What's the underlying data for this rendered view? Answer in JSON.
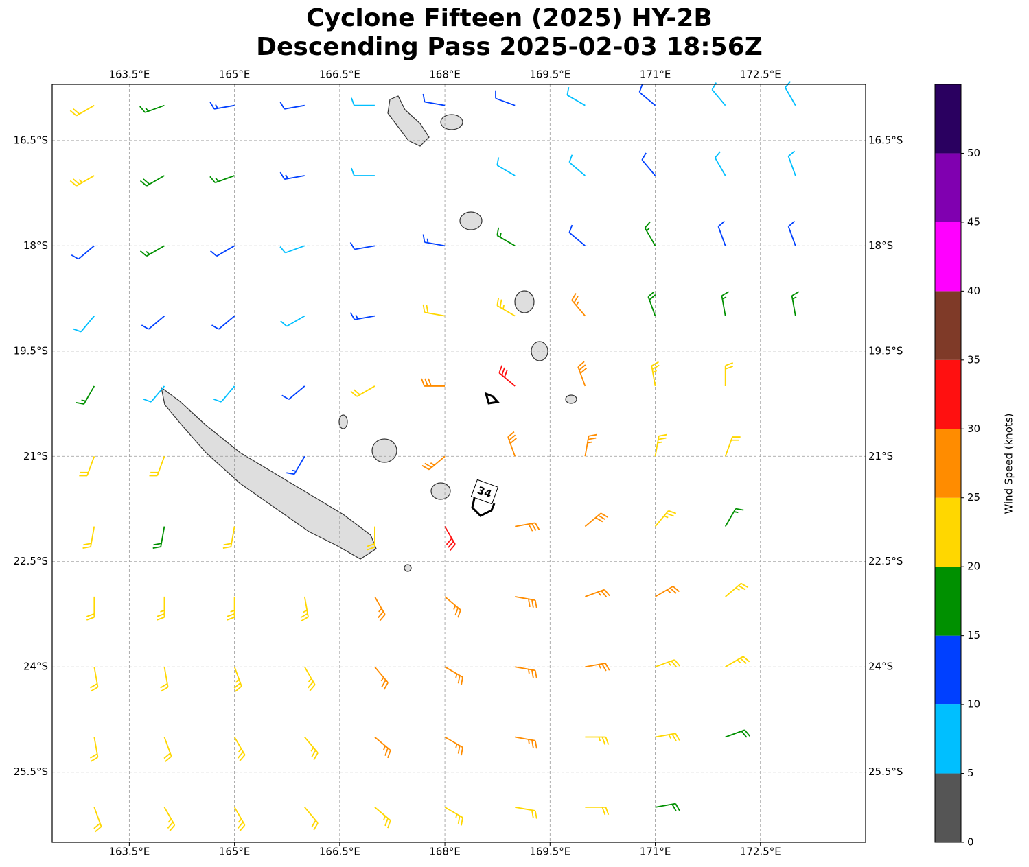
{
  "chart_data": {
    "type": "barbs",
    "title": "Cyclone Fifteen (2025) HY-2B",
    "subtitle": "Descending Pass 2025-02-03 18:56Z",
    "xlim": [
      162.4,
      174.0
    ],
    "ylim": [
      -26.5,
      -15.7
    ],
    "xticks": [
      {
        "value": 163.5,
        "label": "163.5°E"
      },
      {
        "value": 165,
        "label": "165°E"
      },
      {
        "value": 166.5,
        "label": "166.5°E"
      },
      {
        "value": 168,
        "label": "168°E"
      },
      {
        "value": 169.5,
        "label": "169.5°E"
      },
      {
        "value": 171,
        "label": "171°E"
      },
      {
        "value": 172.5,
        "label": "172.5°E"
      }
    ],
    "yticks": [
      {
        "value": -16.5,
        "label": "16.5°S"
      },
      {
        "value": -18,
        "label": "18°S"
      },
      {
        "value": -19.5,
        "label": "19.5°S"
      },
      {
        "value": -21,
        "label": "21°S"
      },
      {
        "value": -22.5,
        "label": "22.5°S"
      },
      {
        "value": -24,
        "label": "24°S"
      },
      {
        "value": -25.5,
        "label": "25.5°S"
      }
    ],
    "grid": true,
    "contour_level": 34,
    "wind": {
      "lons": [
        163,
        164,
        165,
        166,
        167,
        168,
        169,
        170,
        171,
        172,
        173
      ],
      "lats": [
        -16,
        -17,
        -18,
        -19,
        -20,
        -21,
        -22,
        -23,
        -24,
        -25,
        -26
      ],
      "speed": [
        [
          22,
          17,
          13,
          12,
          9,
          12,
          12,
          8,
          12,
          9,
          8
        ],
        [
          24,
          18,
          17,
          13,
          9,
          null,
          8,
          9,
          11,
          9,
          8
        ],
        [
          12,
          16,
          12,
          9,
          12,
          14,
          17,
          12,
          16,
          12,
          11
        ],
        [
          9,
          12,
          11,
          9,
          13,
          22,
          23,
          26,
          18,
          17,
          16
        ],
        [
          16,
          8,
          9,
          12,
          22,
          28,
          32,
          28,
          24,
          22,
          null
        ],
        [
          21,
          22,
          null,
          13,
          null,
          27,
          28,
          26,
          23,
          22,
          null
        ],
        [
          22,
          18,
          21,
          null,
          22,
          31,
          29,
          28,
          24,
          17,
          null
        ],
        [
          22,
          23,
          23,
          23,
          26,
          27,
          28,
          27,
          25,
          23,
          null
        ],
        [
          22,
          22,
          23,
          24,
          26,
          25,
          26,
          25,
          24,
          23,
          null
        ],
        [
          22,
          22,
          23,
          23,
          26,
          25,
          25,
          24,
          23,
          19,
          null
        ],
        [
          22,
          23,
          23,
          22,
          23,
          23,
          22,
          21,
          18,
          null,
          null
        ]
      ],
      "direction": [
        [
          240,
          250,
          260,
          260,
          270,
          280,
          290,
          300,
          310,
          320,
          330
        ],
        [
          240,
          240,
          250,
          260,
          270,
          null,
          300,
          310,
          320,
          330,
          340
        ],
        [
          230,
          240,
          240,
          250,
          260,
          280,
          300,
          310,
          330,
          340,
          340
        ],
        [
          220,
          230,
          230,
          240,
          260,
          280,
          300,
          320,
          340,
          350,
          350
        ],
        [
          210,
          220,
          220,
          230,
          240,
          270,
          310,
          340,
          350,
          0,
          null
        ],
        [
          200,
          200,
          null,
          210,
          null,
          230,
          340,
          10,
          10,
          20,
          null
        ],
        [
          190,
          190,
          190,
          null,
          180,
          150,
          80,
          50,
          40,
          30,
          null
        ],
        [
          180,
          180,
          180,
          170,
          150,
          130,
          100,
          70,
          60,
          50,
          null
        ],
        [
          170,
          170,
          160,
          150,
          140,
          120,
          100,
          80,
          70,
          60,
          null
        ],
        [
          170,
          160,
          150,
          140,
          130,
          120,
          100,
          90,
          80,
          70,
          null
        ],
        [
          160,
          150,
          150,
          140,
          130,
          120,
          100,
          90,
          80,
          null,
          null
        ]
      ]
    },
    "colorbar": {
      "label": "Wind Speed (knots)",
      "clim": [
        0,
        55
      ],
      "ticks": [
        0,
        5,
        10,
        15,
        20,
        25,
        30,
        35,
        40,
        45,
        50
      ],
      "bounds": [
        0,
        5,
        10,
        15,
        20,
        25,
        30,
        35,
        40,
        45,
        50,
        55
      ],
      "colors": [
        "#555555",
        "#00bfff",
        "#0040ff",
        "#009000",
        "#ffd700",
        "#ff8c00",
        "#ff1010",
        "#7f3a28",
        "#ff00ff",
        "#8000b0",
        "#2a0060"
      ]
    }
  }
}
